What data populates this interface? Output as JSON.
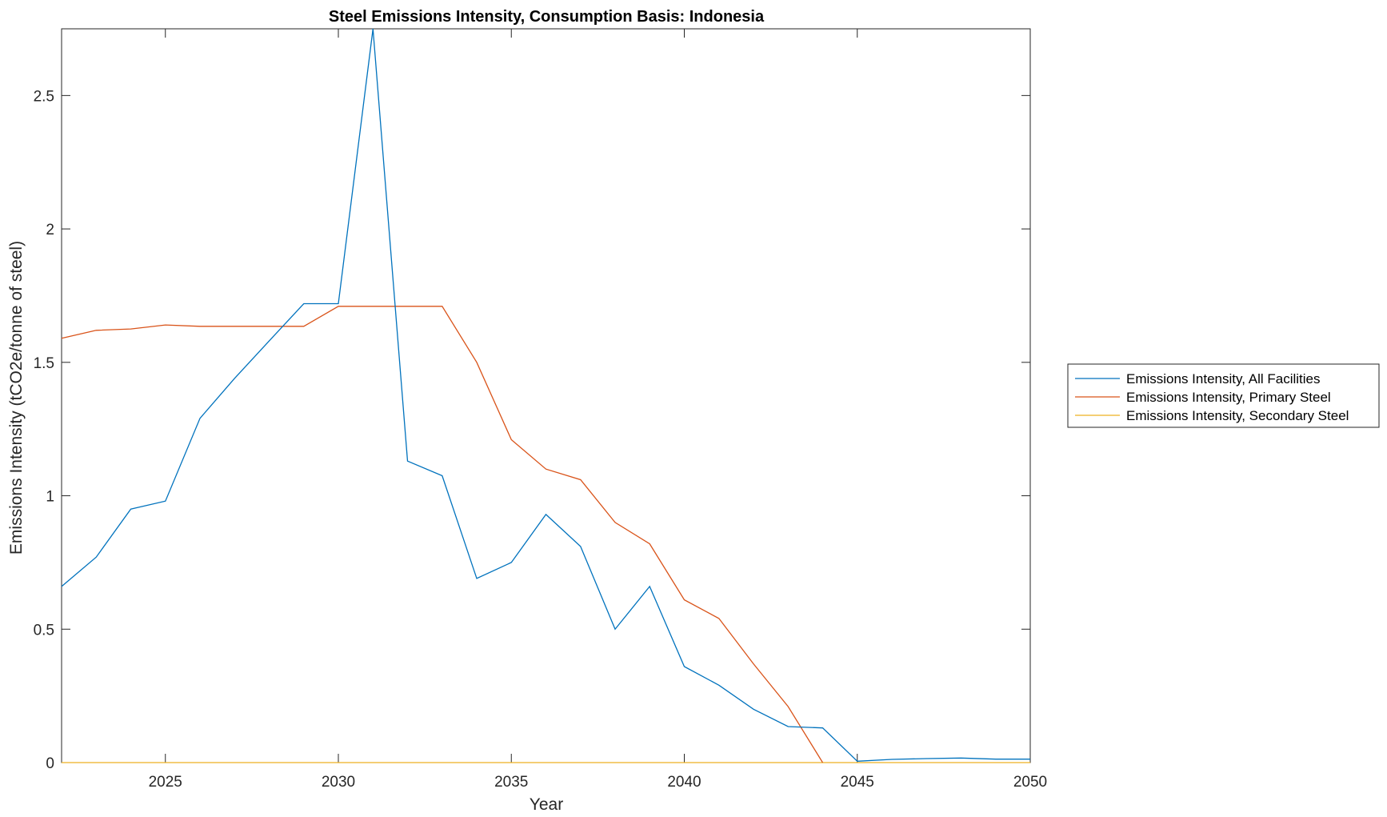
{
  "chart_data": {
    "type": "line",
    "title": "Steel Emissions Intensity, Consumption Basis: Indonesia",
    "xlabel": "Year",
    "ylabel": "Emissions Intensity (tCO2e/tonne of steel)",
    "xlim": [
      2022,
      2050
    ],
    "ylim": [
      0,
      2.75
    ],
    "xticks": [
      2025,
      2030,
      2035,
      2040,
      2045,
      2050
    ],
    "xtick_labels": [
      "2025",
      "2030",
      "2035",
      "2040",
      "2045",
      "2050"
    ],
    "yticks": [
      0,
      0.5,
      1,
      1.5,
      2,
      2.5
    ],
    "ytick_labels": [
      "0",
      "0.5",
      "1",
      "1.5",
      "2",
      "2.5"
    ],
    "grid": false,
    "legend_position": "outside-right",
    "x": [
      2022,
      2023,
      2024,
      2025,
      2026,
      2027,
      2028,
      2029,
      2030,
      2031,
      2032,
      2033,
      2034,
      2035,
      2036,
      2037,
      2038,
      2039,
      2040,
      2041,
      2042,
      2043,
      2044,
      2045,
      2046,
      2047,
      2048,
      2049,
      2050
    ],
    "series": [
      {
        "name": "Emissions Intensity, All Facilities",
        "color": "#0072BD",
        "values": [
          0.66,
          0.77,
          0.95,
          0.98,
          1.29,
          1.44,
          1.58,
          1.72,
          1.72,
          2.75,
          1.13,
          1.075,
          0.69,
          0.75,
          0.93,
          0.81,
          0.5,
          0.66,
          0.36,
          0.29,
          0.2,
          0.135,
          0.13,
          0.005,
          0.012,
          0.015,
          0.017,
          0.013,
          0.013
        ]
      },
      {
        "name": "Emissions Intensity, Primary Steel",
        "color": "#D95319",
        "values": [
          1.59,
          1.62,
          1.625,
          1.64,
          1.635,
          1.635,
          1.635,
          1.635,
          1.71,
          1.71,
          1.71,
          1.71,
          1.5,
          1.21,
          1.1,
          1.06,
          0.9,
          0.82,
          0.61,
          0.54,
          0.37,
          0.21,
          0.0,
          null,
          null,
          null,
          null,
          null,
          null
        ]
      },
      {
        "name": "Emissions Intensity, Secondary Steel",
        "color": "#EDB120",
        "values": [
          0,
          0,
          0,
          0,
          0,
          0,
          0,
          0,
          0,
          0,
          0,
          0,
          0,
          0,
          0,
          0,
          0,
          0,
          0,
          0,
          0,
          0,
          0,
          0,
          0,
          0,
          0,
          0,
          0
        ]
      }
    ]
  }
}
